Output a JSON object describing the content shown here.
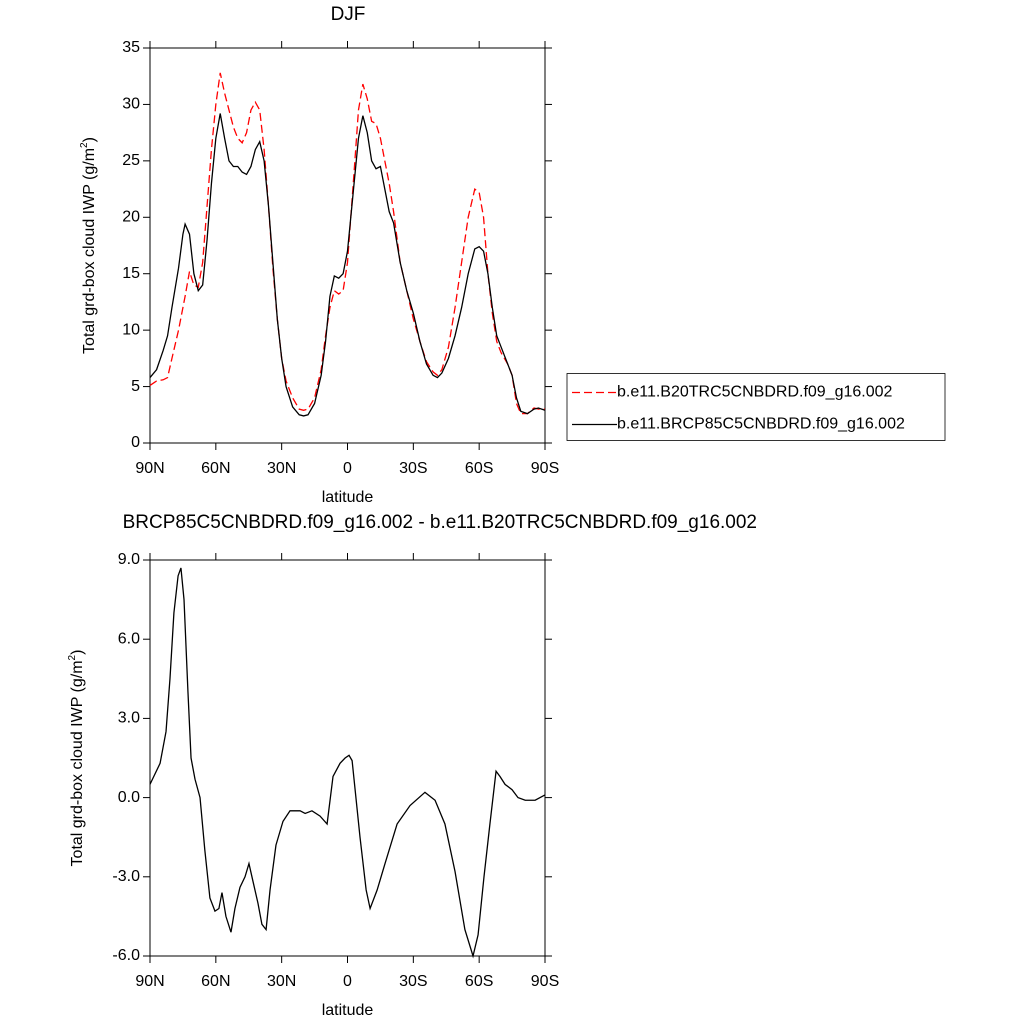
{
  "chart_data": [
    {
      "type": "line",
      "title": "DJF",
      "xlabel": "latitude",
      "ylabel": [
        "Total grd-box cloud IWP (g/m",
        "2",
        ")"
      ],
      "x": [
        90,
        87,
        84,
        82,
        80,
        77,
        75,
        74,
        72,
        70,
        68,
        66,
        64,
        62,
        60,
        58,
        56,
        54,
        52,
        50,
        48,
        46,
        44,
        42,
        40,
        38,
        36,
        34,
        32,
        30,
        28,
        25,
        22,
        20,
        18,
        15,
        12,
        10,
        8,
        6,
        4,
        2,
        0,
        -3,
        -5,
        -7,
        -9,
        -11,
        -13,
        -15,
        -17,
        -19,
        -21,
        -24,
        -27,
        -30,
        -33,
        -36,
        -39,
        -41,
        -43,
        -46,
        -49,
        -52,
        -55,
        -58,
        -60,
        -62,
        -64,
        -66,
        -68,
        -70,
        -73,
        -75,
        -77,
        -79,
        -82,
        -85,
        -87,
        -90
      ],
      "series": [
        {
          "name": "b.e11.B20TRC5CNBDRD.f09_g16.002",
          "color": "#ff0000",
          "dash": "dashed",
          "values": [
            5.1,
            5.5,
            5.6,
            5.8,
            7.5,
            10,
            12,
            13,
            15.2,
            14,
            13.8,
            16,
            21,
            26,
            30,
            32.8,
            31,
            29.5,
            28,
            27,
            26.6,
            27.5,
            29.5,
            30.2,
            29.5,
            26,
            21,
            15.5,
            11,
            7.5,
            5.5,
            4,
            3,
            2.9,
            3,
            4,
            6.5,
            9.5,
            12,
            13.5,
            13.2,
            13.5,
            16,
            24,
            29.5,
            31.8,
            30.5,
            28.5,
            28.3,
            27,
            25,
            23,
            20.5,
            16,
            13.5,
            11,
            9,
            7.2,
            6.3,
            6,
            6.5,
            8.5,
            12,
            16,
            20,
            22.5,
            22.2,
            20,
            15,
            11.5,
            9,
            8,
            7,
            6,
            3.5,
            2.6,
            2.6,
            3.1,
            3,
            3
          ]
        },
        {
          "name": "b.e11.BRCP85C5CNBDRD.f09_g16.002",
          "color": "#000000",
          "dash": "solid",
          "values": [
            5.8,
            6.5,
            8.2,
            9.5,
            12,
            15.5,
            18.5,
            19.4,
            18.5,
            15,
            13.5,
            14,
            18,
            23,
            27,
            29.2,
            27,
            25,
            24.5,
            24.5,
            24,
            23.8,
            24.5,
            26,
            26.7,
            25,
            21,
            16,
            11,
            7.5,
            5,
            3.2,
            2.5,
            2.4,
            2.5,
            3.5,
            6,
            9,
            13,
            14.8,
            14.6,
            15,
            17,
            23,
            27,
            29,
            27.5,
            25,
            24.3,
            24.5,
            22.5,
            20.5,
            19.5,
            16,
            13.5,
            11.5,
            9,
            7,
            6,
            5.8,
            6.2,
            7.5,
            9.5,
            12,
            15,
            17.2,
            17.4,
            17,
            15,
            12,
            9.5,
            8.5,
            7,
            6,
            4,
            2.8,
            2.6,
            3.0,
            3.1,
            2.9
          ]
        }
      ],
      "xlim": [
        90,
        -90
      ],
      "xticks": [
        {
          "value": 90,
          "label": "90N"
        },
        {
          "value": 60,
          "label": "60N"
        },
        {
          "value": 30,
          "label": "30N"
        },
        0,
        {
          "value": -30,
          "label": "30S"
        },
        {
          "value": -60,
          "label": "60S"
        },
        {
          "value": -90,
          "label": "90S"
        }
      ],
      "ylim": [
        0,
        35
      ],
      "yticks": [
        0,
        5,
        10,
        15,
        20,
        25,
        30,
        35
      ],
      "legend": "right"
    },
    {
      "type": "line",
      "title": "BRCP85C5CNBDRD.f09_g16.002 - b.e11.B20TRC5CNBDRD.f09_g16.002",
      "xlabel": "latitude",
      "ylabel": [
        "Total grd-box cloud IWP (g/m",
        "2",
        ")"
      ],
      "x": [
        90,
        85.4,
        82.7,
        80.9,
        79.1,
        77.2,
        75.9,
        74.5,
        72.7,
        71.3,
        69.5,
        67.2,
        65,
        62.7,
        60.4,
        58.6,
        57.2,
        55.4,
        53.1,
        51.3,
        49,
        46.7,
        44.9,
        43,
        40.8,
        39,
        37.1,
        35.3,
        32.6,
        29.4,
        26.2,
        21.6,
        19.3,
        16.2,
        12.5,
        9.3,
        6.6,
        3.4,
        1.1,
        -0.7,
        -2.1,
        -5.7,
        -8.5,
        -10.3,
        -13.5,
        -17.1,
        -22.6,
        -28.5,
        -35.3,
        -39.9,
        -44.4,
        -49,
        -53.5,
        -57.2,
        -59.5,
        -62.2,
        -64.9,
        -67.7,
        -69.5,
        -71.8,
        -75,
        -77.7,
        -81,
        -85.5,
        -90
      ],
      "series": [
        {
          "color": "#000000",
          "dash": "solid",
          "values": [
            0.5,
            1.3,
            2.5,
            4.5,
            7,
            8.4,
            8.7,
            7.5,
            4,
            1.5,
            0.7,
            0,
            -2,
            -3.8,
            -4.3,
            -4.2,
            -3.6,
            -4.5,
            -5.1,
            -4.2,
            -3.4,
            -3.0,
            -2.5,
            -3.2,
            -4,
            -4.8,
            -5.0,
            -3.5,
            -1.8,
            -0.9,
            -0.5,
            -0.5,
            -0.6,
            -0.5,
            -0.7,
            -1.0,
            0.8,
            1.3,
            1.5,
            1.6,
            1.4,
            -1.5,
            -3.5,
            -4.2,
            -3.5,
            -2.5,
            -1.0,
            -0.3,
            0.2,
            -0.1,
            -1.0,
            -2.8,
            -5.0,
            -6.0,
            -5.2,
            -3.0,
            -1.0,
            1.0,
            0.8,
            0.5,
            0.3,
            0.0,
            -0.1,
            -0.1,
            0.1
          ]
        }
      ],
      "xlim": [
        90,
        -90
      ],
      "xticks": [
        {
          "value": 90,
          "label": "90N"
        },
        {
          "value": 60,
          "label": "60N"
        },
        {
          "value": 30,
          "label": "30N"
        },
        0,
        {
          "value": -30,
          "label": "30S"
        },
        {
          "value": -60,
          "label": "60S"
        },
        {
          "value": -90,
          "label": "90S"
        }
      ],
      "ylim": [
        -6,
        9
      ],
      "yticks": [
        {
          "value": -6,
          "label": "-6.0"
        },
        {
          "value": -3,
          "label": "-3.0"
        },
        {
          "value": 0,
          "label": "0.0"
        },
        {
          "value": 3,
          "label": "3.0"
        },
        {
          "value": 6,
          "label": "6.0"
        },
        {
          "value": 9,
          "label": "9.0"
        }
      ]
    }
  ]
}
